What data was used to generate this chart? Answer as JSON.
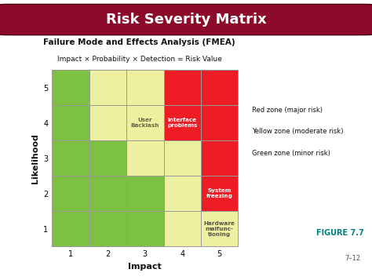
{
  "title": "Risk Severity Matrix",
  "subtitle_line1": "Failure Mode and Effects Analysis (FMEA)",
  "subtitle_line2": "Impact × Probability × Detection = Risk Value",
  "xlabel": "Impact",
  "ylabel": "Likelihood",
  "figure_label": "FIGURE 7.7",
  "page_label": "7–12",
  "legend_lines": [
    "Red zone (major risk)",
    "Yellow zone (moderate risk)",
    "Green zone (minor risk)"
  ],
  "cell_colors": {
    "1_1": "#7dc142",
    "1_2": "#7dc142",
    "1_3": "#7dc142",
    "1_4": "#edf0a0",
    "1_5": "#edf0a0",
    "2_1": "#7dc142",
    "2_2": "#7dc142",
    "2_3": "#7dc142",
    "2_4": "#edf0a0",
    "2_5": "#ee1c25",
    "3_1": "#7dc142",
    "3_2": "#7dc142",
    "3_3": "#edf0a0",
    "3_4": "#edf0a0",
    "3_5": "#ee1c25",
    "4_1": "#7dc142",
    "4_2": "#edf0a0",
    "4_3": "#edf0a0",
    "4_4": "#ee1c25",
    "4_5": "#ee1c25",
    "5_1": "#7dc142",
    "5_2": "#edf0a0",
    "5_3": "#edf0a0",
    "5_4": "#ee1c25",
    "5_5": "#ee1c25"
  },
  "annotations": [
    {
      "row": 4,
      "col": 3,
      "text": "User\nBacklash",
      "color": "#666644"
    },
    {
      "row": 4,
      "col": 4,
      "text": "Interface\nproblems",
      "color": "#ffffff"
    },
    {
      "row": 2,
      "col": 5,
      "text": "System\nfreezing",
      "color": "#ffffff"
    },
    {
      "row": 1,
      "col": 5,
      "text": "Hardware\nmalfunc-\ntioning",
      "color": "#555544"
    }
  ],
  "header_bg": "#8b0a2a",
  "header_text_color": "#ffffff",
  "bg_color": "#ffffff"
}
